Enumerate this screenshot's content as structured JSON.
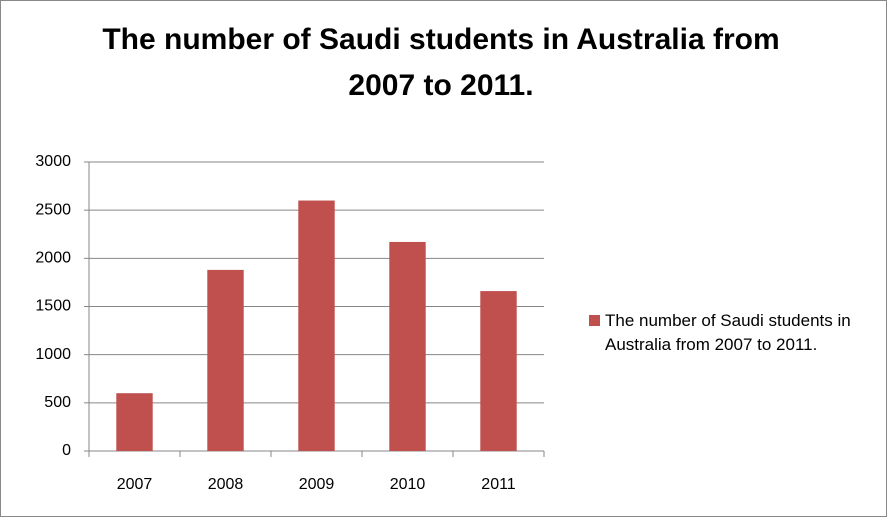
{
  "chart_data": {
    "type": "bar",
    "title": "The number of Saudi students in Australia from 2007 to 2011.",
    "categories": [
      "2007",
      "2008",
      "2009",
      "2010",
      "2011"
    ],
    "series": [
      {
        "name": "The number of Saudi students in Australia from 2007 to 2011.",
        "color": "#c0504d",
        "values": [
          600,
          1880,
          2600,
          2170,
          1660
        ]
      }
    ],
    "ylim": [
      0,
      3000
    ],
    "yticks": [
      0,
      500,
      1000,
      1500,
      2000,
      2500,
      3000
    ],
    "grid": true,
    "legend": "right"
  }
}
